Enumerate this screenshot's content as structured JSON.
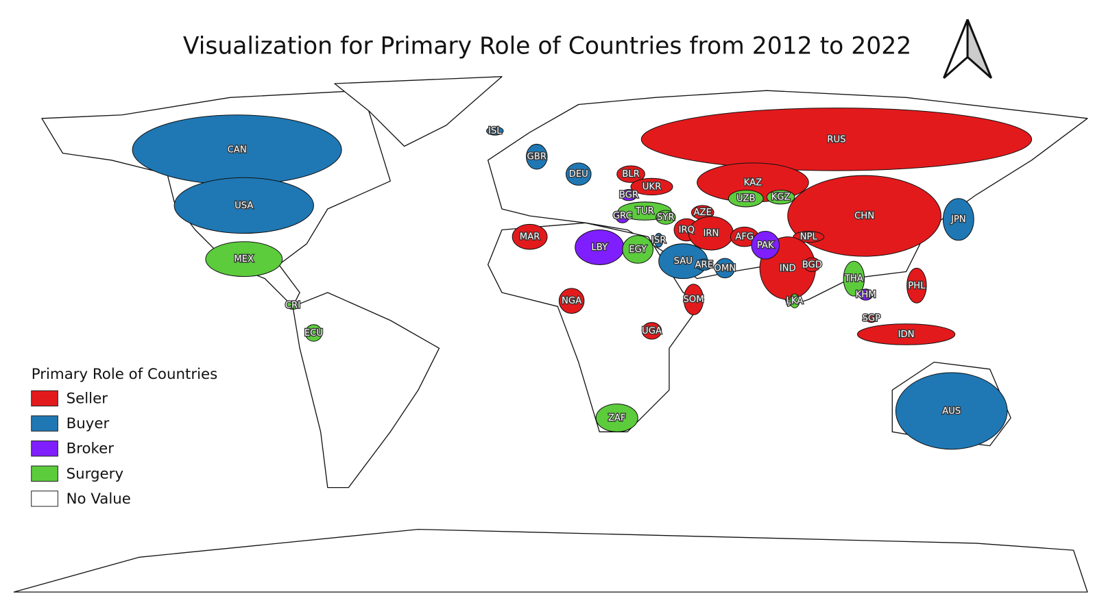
{
  "title": "Visualization for Primary Role of Countries from 2012 to 2022",
  "legend": {
    "title": "Primary Role of Countries",
    "items": [
      {
        "label": "Seller",
        "color": "#e31a1c",
        "countries": [
          "RUS",
          "KAZ",
          "CHN",
          "BLR",
          "UKR",
          "AZE",
          "IRQ",
          "IRN",
          "AFG",
          "NPL",
          "IND",
          "BGD",
          "MAR",
          "NGA",
          "SOM",
          "UGA",
          "PHL",
          "SGP",
          "IDN"
        ]
      },
      {
        "label": "Buyer",
        "color": "#1f78b4",
        "countries": [
          "CAN",
          "USA",
          "ISL",
          "GBR",
          "DEU",
          "ISR",
          "SAU",
          "ARE",
          "OMN",
          "JPN",
          "AUS"
        ]
      },
      {
        "label": "Broker",
        "color": "#7f1fff",
        "countries": [
          "BGR",
          "GRC",
          "LBY",
          "PAK",
          "KHM"
        ]
      },
      {
        "label": "Surgery",
        "color": "#5ccc3c",
        "countries": [
          "MEX",
          "CRI",
          "ECU",
          "TUR",
          "SYR",
          "UZB",
          "KGZ",
          "EGY",
          "LKA",
          "THA",
          "ZAF"
        ]
      },
      {
        "label": "No Value",
        "color": "#ffffff"
      }
    ]
  }
}
